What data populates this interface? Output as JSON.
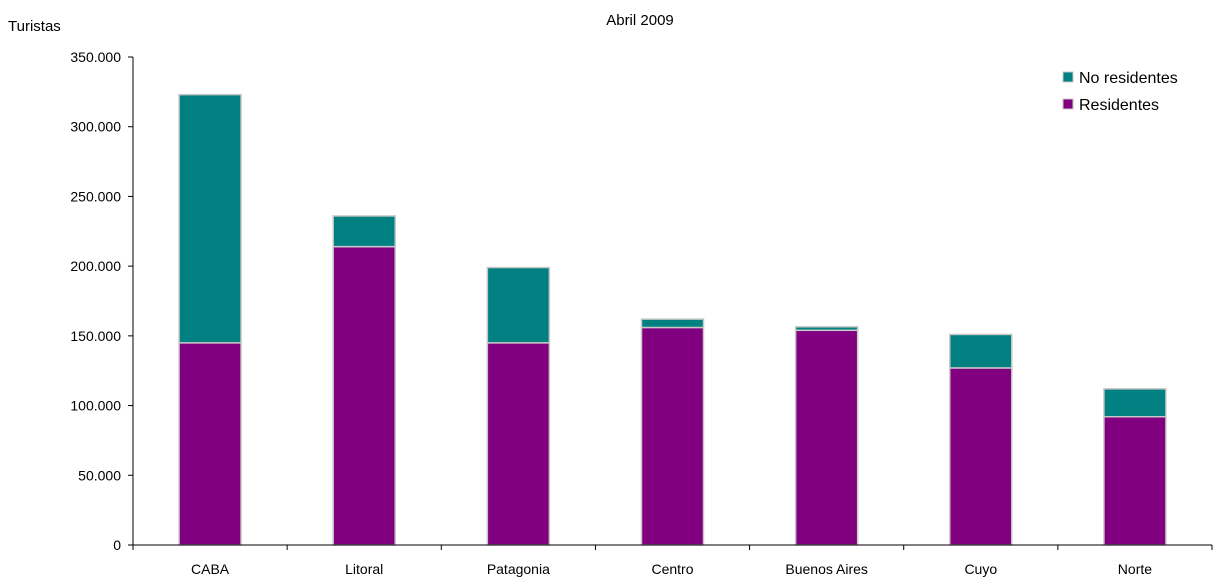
{
  "chart_data": {
    "type": "bar",
    "stacked": true,
    "title": "",
    "subtitle": "Abril 2009",
    "ylabel": "Turistas",
    "xlabel": "",
    "categories": [
      "CABA",
      "Litoral",
      "Patagonia",
      "Centro",
      "Buenos Aires",
      "Cuyo",
      "Norte"
    ],
    "series": [
      {
        "name": "Residentes",
        "values": [
          145000,
          214000,
          145000,
          156000,
          154000,
          127000,
          92000
        ],
        "color": "#800080"
      },
      {
        "name": "No residentes",
        "values": [
          178000,
          22000,
          54000,
          6000,
          2500,
          24000,
          20000
        ],
        "color": "#008080"
      }
    ],
    "ylim": [
      0,
      350000
    ],
    "yticks": [
      "0",
      "50.000",
      "100.000",
      "150.000",
      "200.000",
      "250.000",
      "300.000",
      "350.000"
    ],
    "legend": [
      "No residentes",
      "Residentes"
    ],
    "legend_position": "top-right",
    "grid": false
  }
}
